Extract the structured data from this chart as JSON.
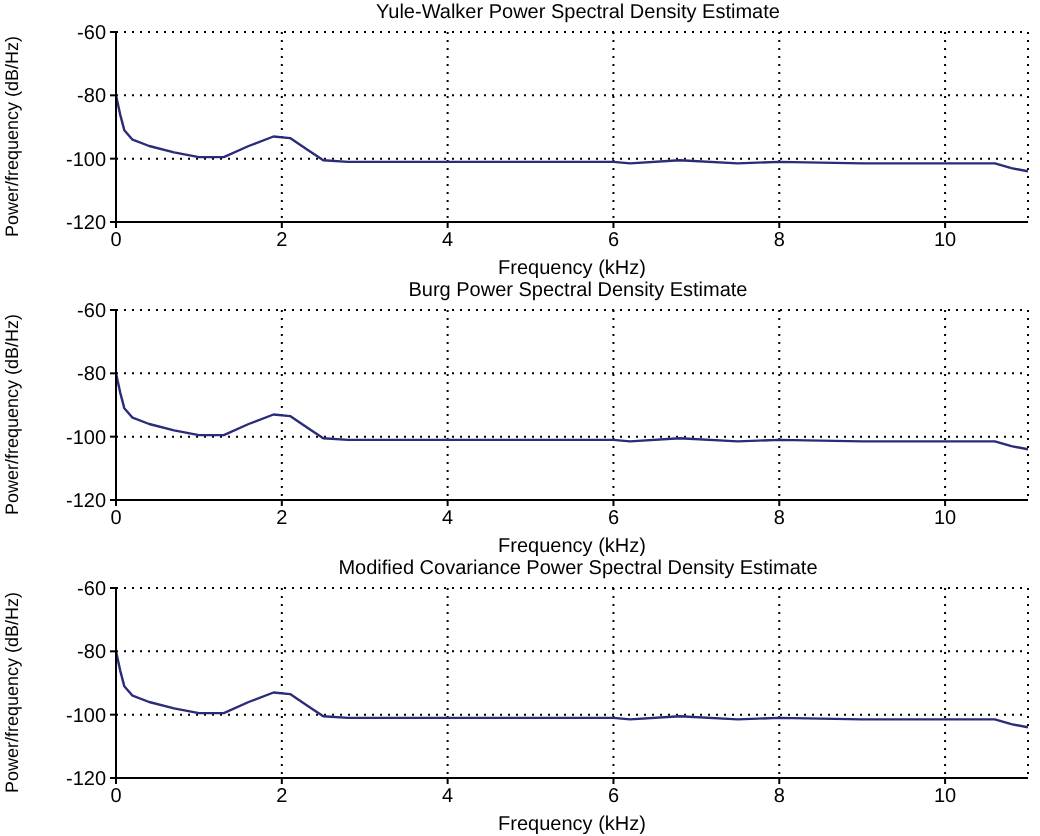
{
  "chart_data": [
    {
      "type": "line",
      "title": "Yule-Walker Power Spectral Density Estimate",
      "xlabel": "Frequency (kHz)",
      "ylabel": "Power/frequency (dB/Hz)",
      "xlim": [
        0,
        11
      ],
      "xticks": [
        0,
        2,
        4,
        6,
        8,
        10
      ],
      "ylim": [
        -120,
        -60
      ],
      "yticks": [
        -120,
        -100,
        -80,
        -60
      ],
      "grid": true,
      "series": [
        {
          "color": "#2b2b7a",
          "x": [
            0,
            0.05,
            0.1,
            0.2,
            0.4,
            0.7,
            1.0,
            1.3,
            1.6,
            1.9,
            2.1,
            2.3,
            2.5,
            2.8,
            3.5,
            5,
            6,
            6.2,
            6.8,
            7.5,
            8,
            9,
            10,
            10.6,
            10.8,
            11
          ],
          "values": [
            -80,
            -86,
            -91,
            -94,
            -96,
            -98,
            -99.5,
            -99.5,
            -96,
            -93,
            -93.5,
            -97,
            -100.5,
            -101,
            -101,
            -101,
            -101,
            -101.5,
            -100.5,
            -101.5,
            -101,
            -101.5,
            -101.5,
            -101.5,
            -103,
            -104
          ]
        }
      ]
    },
    {
      "type": "line",
      "title": "Burg Power Spectral Density Estimate",
      "xlabel": "Frequency (kHz)",
      "ylabel": "Power/frequency (dB/Hz)",
      "xlim": [
        0,
        11
      ],
      "xticks": [
        0,
        2,
        4,
        6,
        8,
        10
      ],
      "ylim": [
        -120,
        -60
      ],
      "yticks": [
        -120,
        -100,
        -80,
        -60
      ],
      "grid": true,
      "series": [
        {
          "color": "#2b2b7a",
          "x": [
            0,
            0.05,
            0.1,
            0.2,
            0.4,
            0.7,
            1.0,
            1.3,
            1.6,
            1.9,
            2.1,
            2.3,
            2.5,
            2.8,
            3.5,
            5,
            6,
            6.2,
            6.8,
            7.5,
            8,
            9,
            10,
            10.6,
            10.8,
            11
          ],
          "values": [
            -80,
            -86,
            -91,
            -94,
            -96,
            -98,
            -99.5,
            -99.5,
            -96,
            -93,
            -93.5,
            -97,
            -100.5,
            -101,
            -101,
            -101,
            -101,
            -101.5,
            -100.5,
            -101.5,
            -101,
            -101.5,
            -101.5,
            -101.5,
            -103,
            -104
          ]
        }
      ]
    },
    {
      "type": "line",
      "title": "Modified Covariance Power Spectral Density Estimate",
      "xlabel": "Frequency (kHz)",
      "ylabel": "Power/frequency (dB/Hz)",
      "xlim": [
        0,
        11
      ],
      "xticks": [
        0,
        2,
        4,
        6,
        8,
        10
      ],
      "ylim": [
        -120,
        -60
      ],
      "yticks": [
        -120,
        -100,
        -80,
        -60
      ],
      "grid": true,
      "series": [
        {
          "color": "#2b2b7a",
          "x": [
            0,
            0.05,
            0.1,
            0.2,
            0.4,
            0.7,
            1.0,
            1.3,
            1.6,
            1.9,
            2.1,
            2.3,
            2.5,
            2.8,
            3.5,
            5,
            6,
            6.2,
            6.8,
            7.5,
            8,
            9,
            10,
            10.6,
            10.8,
            11
          ],
          "values": [
            -80,
            -86,
            -91,
            -94,
            -96,
            -98,
            -99.5,
            -99.5,
            -96,
            -93,
            -93.5,
            -97,
            -100.5,
            -101,
            -101,
            -101,
            -101,
            -101.5,
            -100.5,
            -101.5,
            -101,
            -101.5,
            -101.5,
            -101.5,
            -103,
            -104
          ]
        }
      ]
    }
  ]
}
